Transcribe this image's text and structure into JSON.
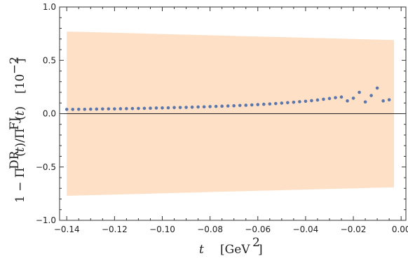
{
  "chart_data": {
    "type": "scatter",
    "title": "",
    "xlabel": "t [GeV^2]",
    "ylabel": "1 − Π^DR(t)/Π^FJ(t)   [10^−2]",
    "xlim": [
      -0.143,
      0.002
    ],
    "ylim": [
      -1.0,
      1.0
    ],
    "x_ticks": [
      -0.14,
      -0.12,
      -0.1,
      -0.08,
      -0.06,
      -0.04,
      -0.02,
      0.0
    ],
    "x_tick_labels": [
      "−0.14",
      "−0.12",
      "−0.10",
      "−0.08",
      "−0.06",
      "−0.04",
      "−0.02",
      "0.00"
    ],
    "y_ticks": [
      -1.0,
      -0.5,
      0.0,
      0.5,
      1.0
    ],
    "y_tick_labels": [
      "−1.0",
      "−0.5",
      "0.0",
      "0.5",
      "1.0"
    ],
    "zero_line": true,
    "grid": false,
    "series": [
      {
        "kind": "points",
        "color": "#5b76ad",
        "x": [
          -0.14,
          -0.1375,
          -0.135,
          -0.1325,
          -0.13,
          -0.1275,
          -0.125,
          -0.1225,
          -0.12,
          -0.1175,
          -0.115,
          -0.1125,
          -0.11,
          -0.1075,
          -0.105,
          -0.1025,
          -0.1,
          -0.0975,
          -0.095,
          -0.0925,
          -0.09,
          -0.0875,
          -0.085,
          -0.0825,
          -0.08,
          -0.0775,
          -0.075,
          -0.0725,
          -0.07,
          -0.0675,
          -0.065,
          -0.0625,
          -0.06,
          -0.0575,
          -0.055,
          -0.0525,
          -0.05,
          -0.0475,
          -0.045,
          -0.0425,
          -0.04,
          -0.0375,
          -0.035,
          -0.0325,
          -0.03,
          -0.0275,
          -0.025,
          -0.0225,
          -0.02,
          -0.0175,
          -0.015,
          -0.0125,
          -0.01,
          -0.0075,
          -0.005
        ],
        "y": [
          0.04,
          0.04,
          0.041,
          0.041,
          0.042,
          0.043,
          0.044,
          0.045,
          0.045,
          0.046,
          0.047,
          0.048,
          0.049,
          0.05,
          0.051,
          0.053,
          0.054,
          0.055,
          0.057,
          0.058,
          0.059,
          0.061,
          0.063,
          0.064,
          0.066,
          0.068,
          0.07,
          0.072,
          0.074,
          0.077,
          0.079,
          0.082,
          0.085,
          0.088,
          0.091,
          0.095,
          0.099,
          0.103,
          0.107,
          0.112,
          0.116,
          0.122,
          0.128,
          0.135,
          0.142,
          0.15,
          0.156,
          0.12,
          0.145,
          0.2,
          0.11,
          0.17,
          0.24,
          0.12,
          0.13
        ]
      }
    ],
    "band": {
      "color": "#fde0c5",
      "x": [
        -0.14,
        -0.003
      ],
      "upper": [
        0.77,
        0.69
      ],
      "lower": [
        -0.77,
        -0.69
      ]
    }
  }
}
